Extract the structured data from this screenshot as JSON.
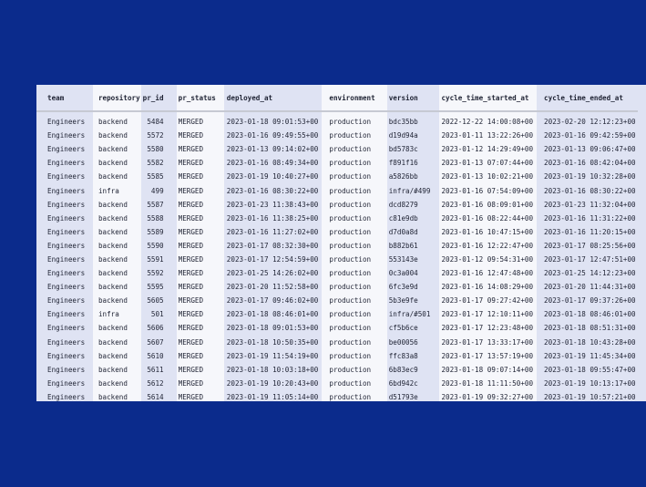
{
  "table": {
    "columns": [
      "team",
      "repository",
      "pr_id",
      "pr_status",
      "deployed_at",
      "environment",
      "version",
      "cycle_time_started_at",
      "cycle_time_ended_at"
    ],
    "rows": [
      [
        "Engineers",
        "backend",
        "5484",
        "MERGED",
        "2023-01-18 09:01:53+00",
        "production",
        "bdc35bb",
        "2022-12-22 14:00:08+00",
        "2023-02-20 12:12:23+00"
      ],
      [
        "Engineers",
        "backend",
        "5572",
        "MERGED",
        "2023-01-16 09:49:55+00",
        "production",
        "d19d94a",
        "2023-01-11 13:22:26+00",
        "2023-01-16 09:42:59+00"
      ],
      [
        "Engineers",
        "backend",
        "5580",
        "MERGED",
        "2023-01-13 09:14:02+00",
        "production",
        "bd5783c",
        "2023-01-12 14:29:49+00",
        "2023-01-13 09:06:47+00"
      ],
      [
        "Engineers",
        "backend",
        "5582",
        "MERGED",
        "2023-01-16 08:49:34+00",
        "production",
        "f891f16",
        "2023-01-13 07:07:44+00",
        "2023-01-16 08:42:04+00"
      ],
      [
        "Engineers",
        "backend",
        "5585",
        "MERGED",
        "2023-01-19 10:40:27+00",
        "production",
        "a5826bb",
        "2023-01-13 10:02:21+00",
        "2023-01-19 10:32:28+00"
      ],
      [
        "Engineers",
        "infra",
        "499",
        "MERGED",
        "2023-01-16 08:30:22+00",
        "production",
        "infra/#499",
        "2023-01-16 07:54:09+00",
        "2023-01-16 08:30:22+00"
      ],
      [
        "Engineers",
        "backend",
        "5587",
        "MERGED",
        "2023-01-23 11:38:43+00",
        "production",
        "dcd8279",
        "2023-01-16 08:09:01+00",
        "2023-01-23 11:32:04+00"
      ],
      [
        "Engineers",
        "backend",
        "5588",
        "MERGED",
        "2023-01-16 11:38:25+00",
        "production",
        "c81e9db",
        "2023-01-16 08:22:44+00",
        "2023-01-16 11:31:22+00"
      ],
      [
        "Engineers",
        "backend",
        "5589",
        "MERGED",
        "2023-01-16 11:27:02+00",
        "production",
        "d7d0a8d",
        "2023-01-16 10:47:15+00",
        "2023-01-16 11:20:15+00"
      ],
      [
        "Engineers",
        "backend",
        "5590",
        "MERGED",
        "2023-01-17 08:32:30+00",
        "production",
        "b882b61",
        "2023-01-16 12:22:47+00",
        "2023-01-17 08:25:56+00"
      ],
      [
        "Engineers",
        "backend",
        "5591",
        "MERGED",
        "2023-01-17 12:54:59+00",
        "production",
        "553143e",
        "2023-01-12 09:54:31+00",
        "2023-01-17 12:47:51+00"
      ],
      [
        "Engineers",
        "backend",
        "5592",
        "MERGED",
        "2023-01-25 14:26:02+00",
        "production",
        "0c3a004",
        "2023-01-16 12:47:48+00",
        "2023-01-25 14:12:23+00"
      ],
      [
        "Engineers",
        "backend",
        "5595",
        "MERGED",
        "2023-01-20 11:52:58+00",
        "production",
        "6fc3e9d",
        "2023-01-16 14:08:29+00",
        "2023-01-20 11:44:31+00"
      ],
      [
        "Engineers",
        "backend",
        "5605",
        "MERGED",
        "2023-01-17 09:46:02+00",
        "production",
        "5b3e9fe",
        "2023-01-17 09:27:42+00",
        "2023-01-17 09:37:26+00"
      ],
      [
        "Engineers",
        "infra",
        "501",
        "MERGED",
        "2023-01-18 08:46:01+00",
        "production",
        "infra/#501",
        "2023-01-17 12:10:11+00",
        "2023-01-18 08:46:01+00"
      ],
      [
        "Engineers",
        "backend",
        "5606",
        "MERGED",
        "2023-01-18 09:01:53+00",
        "production",
        "cf5b6ce",
        "2023-01-17 12:23:48+00",
        "2023-01-18 08:51:31+00"
      ],
      [
        "Engineers",
        "backend",
        "5607",
        "MERGED",
        "2023-01-18 10:50:35+00",
        "production",
        "be00056",
        "2023-01-17 13:33:17+00",
        "2023-01-18 10:43:28+00"
      ],
      [
        "Engineers",
        "backend",
        "5610",
        "MERGED",
        "2023-01-19 11:54:19+00",
        "production",
        "ffc83a8",
        "2023-01-17 13:57:19+00",
        "2023-01-19 11:45:34+00"
      ],
      [
        "Engineers",
        "backend",
        "5611",
        "MERGED",
        "2023-01-18 10:03:18+00",
        "production",
        "6b83ec9",
        "2023-01-18 09:07:14+00",
        "2023-01-18 09:55:47+00"
      ],
      [
        "Engineers",
        "backend",
        "5612",
        "MERGED",
        "2023-01-19 10:20:43+00",
        "production",
        "6bd942c",
        "2023-01-18 11:11:50+00",
        "2023-01-19 10:13:17+00"
      ],
      [
        "Engineers",
        "backend",
        "5614",
        "MERGED",
        "2023-01-19 11:05:14+00",
        "production",
        "d51793e",
        "2023-01-19 09:32:27+00",
        "2023-01-19 10:57:21+00"
      ]
    ]
  },
  "colors": {
    "background": "#0b2b8c",
    "shaded_column": "#dfe3f3",
    "light_column": "#f6f7fb"
  }
}
